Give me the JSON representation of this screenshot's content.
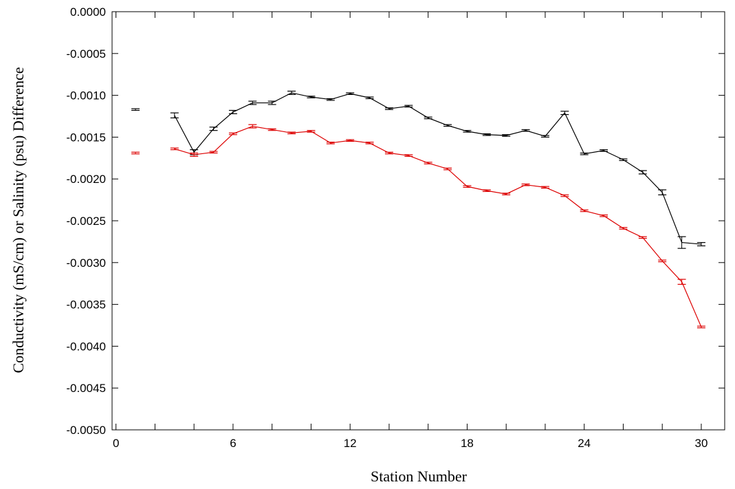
{
  "chart_data": {
    "type": "line",
    "title": "",
    "xlabel": "Station Number",
    "ylabel": "Conductivity (mS/cm) or Salinity (psu) Difference",
    "xlim": [
      -0.2,
      31.2
    ],
    "ylim": [
      -0.005,
      0.0
    ],
    "x_ticks": [
      0,
      6,
      12,
      18,
      24,
      30
    ],
    "x_minor_ticks": [
      2,
      4,
      8,
      10,
      14,
      16,
      20,
      22,
      26,
      28
    ],
    "y_ticks": [
      0.0,
      -0.0005,
      -0.001,
      -0.0015,
      -0.002,
      -0.0025,
      -0.003,
      -0.0035,
      -0.004,
      -0.0045,
      -0.005
    ],
    "y_tick_labels": [
      "0.0000",
      "-0.0005",
      "-0.0010",
      "-0.0015",
      "-0.0020",
      "-0.0025",
      "-0.0030",
      "-0.0035",
      "-0.0040",
      "-0.0045",
      "-0.0050"
    ],
    "grid": false,
    "legend": "none",
    "series": [
      {
        "color": "#000000",
        "x": [
          1,
          3,
          4,
          5,
          6,
          7,
          8,
          9,
          10,
          11,
          12,
          13,
          14,
          15,
          16,
          17,
          18,
          19,
          20,
          21,
          22,
          23,
          24,
          25,
          26,
          27,
          28,
          29,
          30
        ],
        "y": [
          -0.00117,
          -0.00124,
          -0.00168,
          -0.0014,
          -0.0012,
          -0.00109,
          -0.00109,
          -0.00097,
          -0.00102,
          -0.00105,
          -0.00098,
          -0.00103,
          -0.00116,
          -0.00113,
          -0.00127,
          -0.00136,
          -0.00143,
          -0.00147,
          -0.00148,
          -0.00142,
          -0.00149,
          -0.00121,
          -0.0017,
          -0.00166,
          -0.00177,
          -0.00192,
          -0.00216,
          -0.00276,
          -0.00278
        ],
        "err": [
          1e-05,
          3e-05,
          3e-05,
          2e-05,
          2e-05,
          2e-05,
          2e-05,
          2e-05,
          1e-05,
          1e-05,
          1e-05,
          1e-05,
          1e-05,
          1e-05,
          1e-05,
          1e-05,
          1e-05,
          1e-05,
          1e-05,
          1e-05,
          1e-05,
          2e-05,
          1e-05,
          1e-05,
          1e-05,
          2e-05,
          3e-05,
          7e-05,
          2e-05
        ],
        "connected_from_x": 3
      },
      {
        "color": "#dd0000",
        "x": [
          1,
          3,
          4,
          5,
          6,
          7,
          8,
          9,
          10,
          11,
          12,
          13,
          14,
          15,
          16,
          17,
          18,
          19,
          20,
          21,
          22,
          23,
          24,
          25,
          26,
          27,
          28,
          29,
          30
        ],
        "y": [
          -0.00169,
          -0.00164,
          -0.00171,
          -0.00168,
          -0.00146,
          -0.00137,
          -0.00141,
          -0.00145,
          -0.00143,
          -0.00157,
          -0.00154,
          -0.00157,
          -0.00169,
          -0.00172,
          -0.00181,
          -0.00188,
          -0.00209,
          -0.00214,
          -0.00218,
          -0.00207,
          -0.0021,
          -0.0022,
          -0.00238,
          -0.00244,
          -0.00259,
          -0.0027,
          -0.00298,
          -0.00323,
          -0.00377
        ],
        "err": [
          1e-05,
          1e-05,
          2e-05,
          1e-05,
          1e-05,
          2e-05,
          1e-05,
          1e-05,
          1e-05,
          1e-05,
          1e-05,
          1e-05,
          1e-05,
          1e-05,
          1e-05,
          1e-05,
          1e-05,
          1e-05,
          1e-05,
          1e-05,
          1e-05,
          1e-05,
          1e-05,
          1e-05,
          1e-05,
          1e-05,
          1e-05,
          3e-05,
          1e-05
        ],
        "connected_from_x": 3
      }
    ]
  }
}
